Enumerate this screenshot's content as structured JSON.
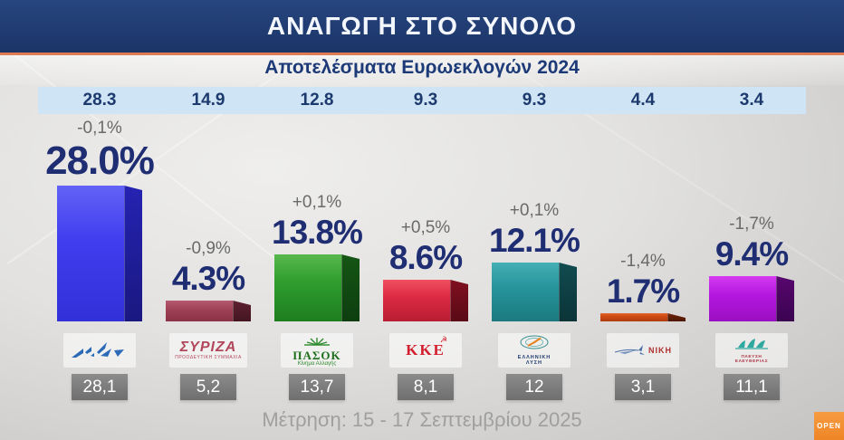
{
  "header": {
    "title": "ΑΝΑΓΩΓΗ ΣΤΟ ΣΥΝΟΛΟ"
  },
  "subtitle": "Αποτελέσματα Ευρωεκλογών 2024",
  "footer": {
    "survey_note": "Μέτρηση: 15 - 17 Σεπτεμβρίου 2025"
  },
  "channel": {
    "logo_text": "OPEN",
    "logo_color": "#ee8526"
  },
  "theme": {
    "header_bg": "#1e3a70",
    "header_accent_line": "#e07a52",
    "euro_band_bg": "#cfe4f4",
    "value_text": "#1f2d73",
    "change_text": "#6a6a6a",
    "prev_box_bg": "#7a7a7a"
  },
  "chart_data": {
    "type": "bar",
    "title": "ΑΝΑΓΩΓΗ ΣΤΟ ΣΥΝΟΛΟ",
    "subtitle": "Αποτελέσματα Ευρωεκλογών 2024",
    "footnote": "Μέτρηση: 15 - 17 Σεπτεμβρίου 2025",
    "unit": "%",
    "grid": false,
    "legend": false,
    "note_rows": {
      "top_band_meaning": "Αποτελέσματα Ευρωεκλογών 2024",
      "gray_box_meaning": "previous measurement"
    },
    "parties": [
      {
        "id": "nd",
        "name": "ΝΔ",
        "logo_icon": "nd-flag-icon",
        "change": "-0,1%",
        "value": 28.0,
        "value_label": "28.0%",
        "euro_2024": "28.3",
        "previous": "28,1",
        "colors": {
          "light": "#6362f6",
          "face": "#403eee",
          "dark": "#3230d8",
          "side": "#2523b2",
          "side_dark": "#1a1880"
        }
      },
      {
        "id": "syriza",
        "name": "ΣΥΡΙΖΑ",
        "logo_icon": "syriza-wordmark",
        "logo_text": "ΣΥΡΙΖΑ",
        "logo_subtext": "ΠΡΟΟΔΕΥΤΙΚΗ ΣΥΜΜΑΧΙΑ",
        "change": "-0,9%",
        "value": 4.3,
        "value_label": "4.3%",
        "euro_2024": "14.9",
        "previous": "5,2",
        "colors": {
          "light": "#b65a70",
          "face": "#a04258",
          "dark": "#8a3246",
          "side": "#5e2030",
          "side_dark": "#441622"
        }
      },
      {
        "id": "pasok",
        "name": "ΠΑΣΟΚ",
        "logo_icon": "pasok-sun-icon",
        "logo_text": "ΠΑΣΟΚ",
        "logo_subtext": "Κίνημα Αλλαγής",
        "change": "+0,1%",
        "value": 13.8,
        "value_label": "13.8%",
        "euro_2024": "12.8",
        "previous": "13,7",
        "colors": {
          "light": "#58b84e",
          "face": "#2f9e2f",
          "dark": "#1e7e1f",
          "side": "#145614",
          "side_dark": "#0e3e0f"
        }
      },
      {
        "id": "kke",
        "name": "ΚΚΕ",
        "logo_icon": "hammer-sickle-icon",
        "logo_text": "ΚΚΕ",
        "change": "+0,5%",
        "value": 8.6,
        "value_label": "8.6%",
        "euro_2024": "9.3",
        "previous": "8,1",
        "colors": {
          "light": "#f05060",
          "face": "#dd2b44",
          "dark": "#b81d34",
          "side": "#801020",
          "side_dark": "#5a0a16"
        }
      },
      {
        "id": "elliniki-lysi",
        "name": "ΕΛΛΗΝΙΚΗ ΛΥΣΗ",
        "logo_icon": "elliniki-lysi-globe-icon",
        "logo_text": "ΕΛΛΗΝΙΚΗ",
        "logo_subtext": "ΛΥΣΗ",
        "change": "+0,1%",
        "value": 12.1,
        "value_label": "12.1%",
        "euro_2024": "9.3",
        "previous": "12",
        "colors": {
          "light": "#45b0b5",
          "face": "#27959c",
          "dark": "#1b7a80",
          "side": "#114c50",
          "side_dark": "#0b3438"
        }
      },
      {
        "id": "niki",
        "name": "ΝΙΚΗ",
        "logo_icon": "niki-feather-icon",
        "logo_text": "ΝΙΚΗ",
        "change": "-1,4%",
        "value": 1.7,
        "value_label": "1.7%",
        "euro_2024": "4.4",
        "previous": "3,1",
        "colors": {
          "light": "#e06428",
          "face": "#cc4a14",
          "dark": "#b03c0e",
          "side": "#702408",
          "side_dark": "#4c1805"
        }
      },
      {
        "id": "plefsi-eleftherias",
        "name": "ΠΛΕΥΣΗ ΕΛΕΥΘΕΡΙΑΣ",
        "logo_icon": "plefsi-sails-icon",
        "logo_text": "ΠΛΕΥΣΗ",
        "logo_subtext": "ΕΛΕΥΘΕΡΙΑΣ",
        "change": "-1,7%",
        "value": 9.4,
        "value_label": "9.4%",
        "euro_2024": "3.4",
        "previous": "11,1",
        "colors": {
          "light": "#d43cf0",
          "face": "#b517e0",
          "dark": "#9a0fc2",
          "side": "#58066e",
          "side_dark": "#3a0450"
        }
      }
    ]
  }
}
